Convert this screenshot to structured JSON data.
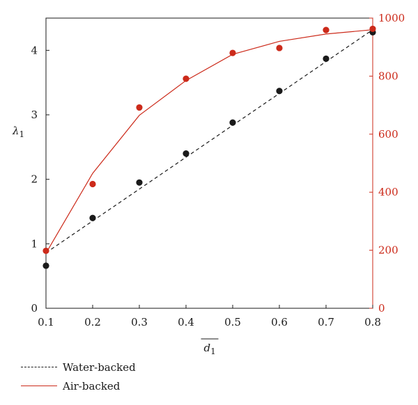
{
  "chart_data": {
    "type": "line",
    "xlim": [
      0.1,
      0.8
    ],
    "ylim_left": [
      0,
      4.5
    ],
    "ylim_right": [
      0,
      1000
    ],
    "x_ticks": [
      "0.1",
      "0.2",
      "0.3",
      "0.4",
      "0.5",
      "0.6",
      "0.7",
      "0.8"
    ],
    "x_tick_values": [
      0.1,
      0.2,
      0.3,
      0.4,
      0.5,
      0.6,
      0.7,
      0.8
    ],
    "y_left_ticks": [
      "0",
      "1",
      "2",
      "3",
      "4"
    ],
    "y_left_tick_values": [
      0,
      1,
      2,
      3,
      4
    ],
    "y_right_ticks": [
      "0",
      "200",
      "400",
      "600",
      "800",
      "1000"
    ],
    "y_right_tick_values": [
      0,
      200,
      400,
      600,
      800,
      1000
    ],
    "xlabel": "d1",
    "ylabel": "λ1",
    "legend_position": "bottom-left",
    "colors": {
      "water": "#1a1a1a",
      "air": "#cc2a1a"
    },
    "series": [
      {
        "name": "Water-backed",
        "axis": "left",
        "style": "dashed",
        "line": {
          "x": [
            0.1,
            0.8
          ],
          "y": [
            0.86,
            4.32
          ]
        },
        "points": {
          "x": [
            0.1,
            0.2,
            0.3,
            0.4,
            0.5,
            0.6,
            0.7,
            0.8
          ],
          "y": [
            0.66,
            1.4,
            1.95,
            2.4,
            2.88,
            3.37,
            3.87,
            4.28
          ]
        }
      },
      {
        "name": "Air-backed",
        "axis": "right",
        "style": "solid",
        "line": {
          "x": [
            0.1,
            0.2,
            0.3,
            0.4,
            0.5,
            0.6,
            0.7,
            0.8
          ],
          "y": [
            190,
            465,
            665,
            785,
            875,
            920,
            945,
            960
          ]
        },
        "points": {
          "x": [
            0.1,
            0.2,
            0.3,
            0.4,
            0.5,
            0.6,
            0.7,
            0.8
          ],
          "y": [
            198,
            428,
            692,
            791,
            880,
            897,
            959,
            963
          ]
        }
      }
    ]
  },
  "legend": {
    "water_label": "Water-backed",
    "air_label": "Air-backed"
  }
}
